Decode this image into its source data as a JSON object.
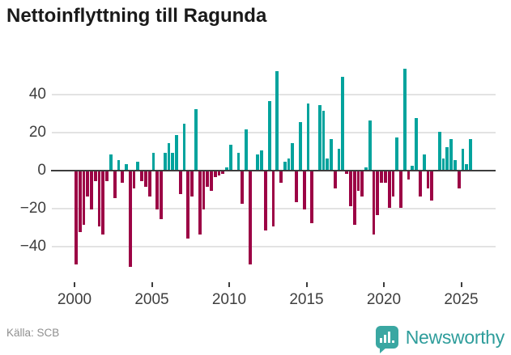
{
  "title": "Nettoinflyttning till Ragunda",
  "source": "Källa: SCB",
  "branding": {
    "name": "Newsworthy",
    "icon": "bar-chart-bubble-icon"
  },
  "colors": {
    "positive": "#02a39d",
    "negative": "#9c0345",
    "axis": "#3d3d3d",
    "grid": "#e3e3e3",
    "brand": "#2e9d9b",
    "badge": "#3aa7a2"
  },
  "chart_data": {
    "type": "bar",
    "title": "Nettoinflyttning till Ragunda",
    "xlabel": "",
    "ylabel": "",
    "frequency": "quarterly",
    "period_start": "2000-Q1",
    "period_end": "2025-Q3",
    "values": [
      -49,
      -32,
      -28,
      -13,
      -20,
      -5,
      -29,
      -33,
      -5,
      8,
      -14,
      5,
      -6,
      3,
      -50,
      -9,
      4,
      -5,
      -8,
      -13,
      9,
      -20,
      -25,
      9,
      14,
      9,
      18,
      -12,
      24,
      -35,
      -13,
      32,
      -33,
      -20,
      -8,
      -10,
      -3,
      -2,
      -1,
      1,
      13,
      0,
      9,
      -17,
      21,
      -49,
      0,
      8,
      10,
      -31,
      36,
      -29,
      52,
      -6,
      4,
      6,
      14,
      -16,
      25,
      -20,
      35,
      -27,
      0,
      34,
      31,
      6,
      16,
      -9,
      11,
      49,
      -1,
      -18,
      -28,
      -10,
      -13,
      1,
      26,
      -33,
      -23,
      -6,
      -6,
      -19,
      -13,
      17,
      -19,
      53,
      -4,
      2,
      27,
      -13,
      8,
      -9,
      -15,
      0,
      20,
      6,
      12,
      16,
      5,
      -9,
      11,
      3,
      16
    ],
    "xticks": [
      2000,
      2005,
      2010,
      2015,
      2020,
      2025
    ],
    "xtick_labels": [
      "2000",
      "2005",
      "2010",
      "2015",
      "2020",
      "2025"
    ],
    "yticks": [
      40,
      20,
      0,
      -20,
      -40
    ],
    "ytick_labels": [
      "40",
      "20",
      "0",
      "−20",
      "−40"
    ],
    "ylim": [
      -55,
      55
    ],
    "grid": true,
    "legend": false,
    "bar_color_rule": "teal when positive, crimson when negative"
  }
}
